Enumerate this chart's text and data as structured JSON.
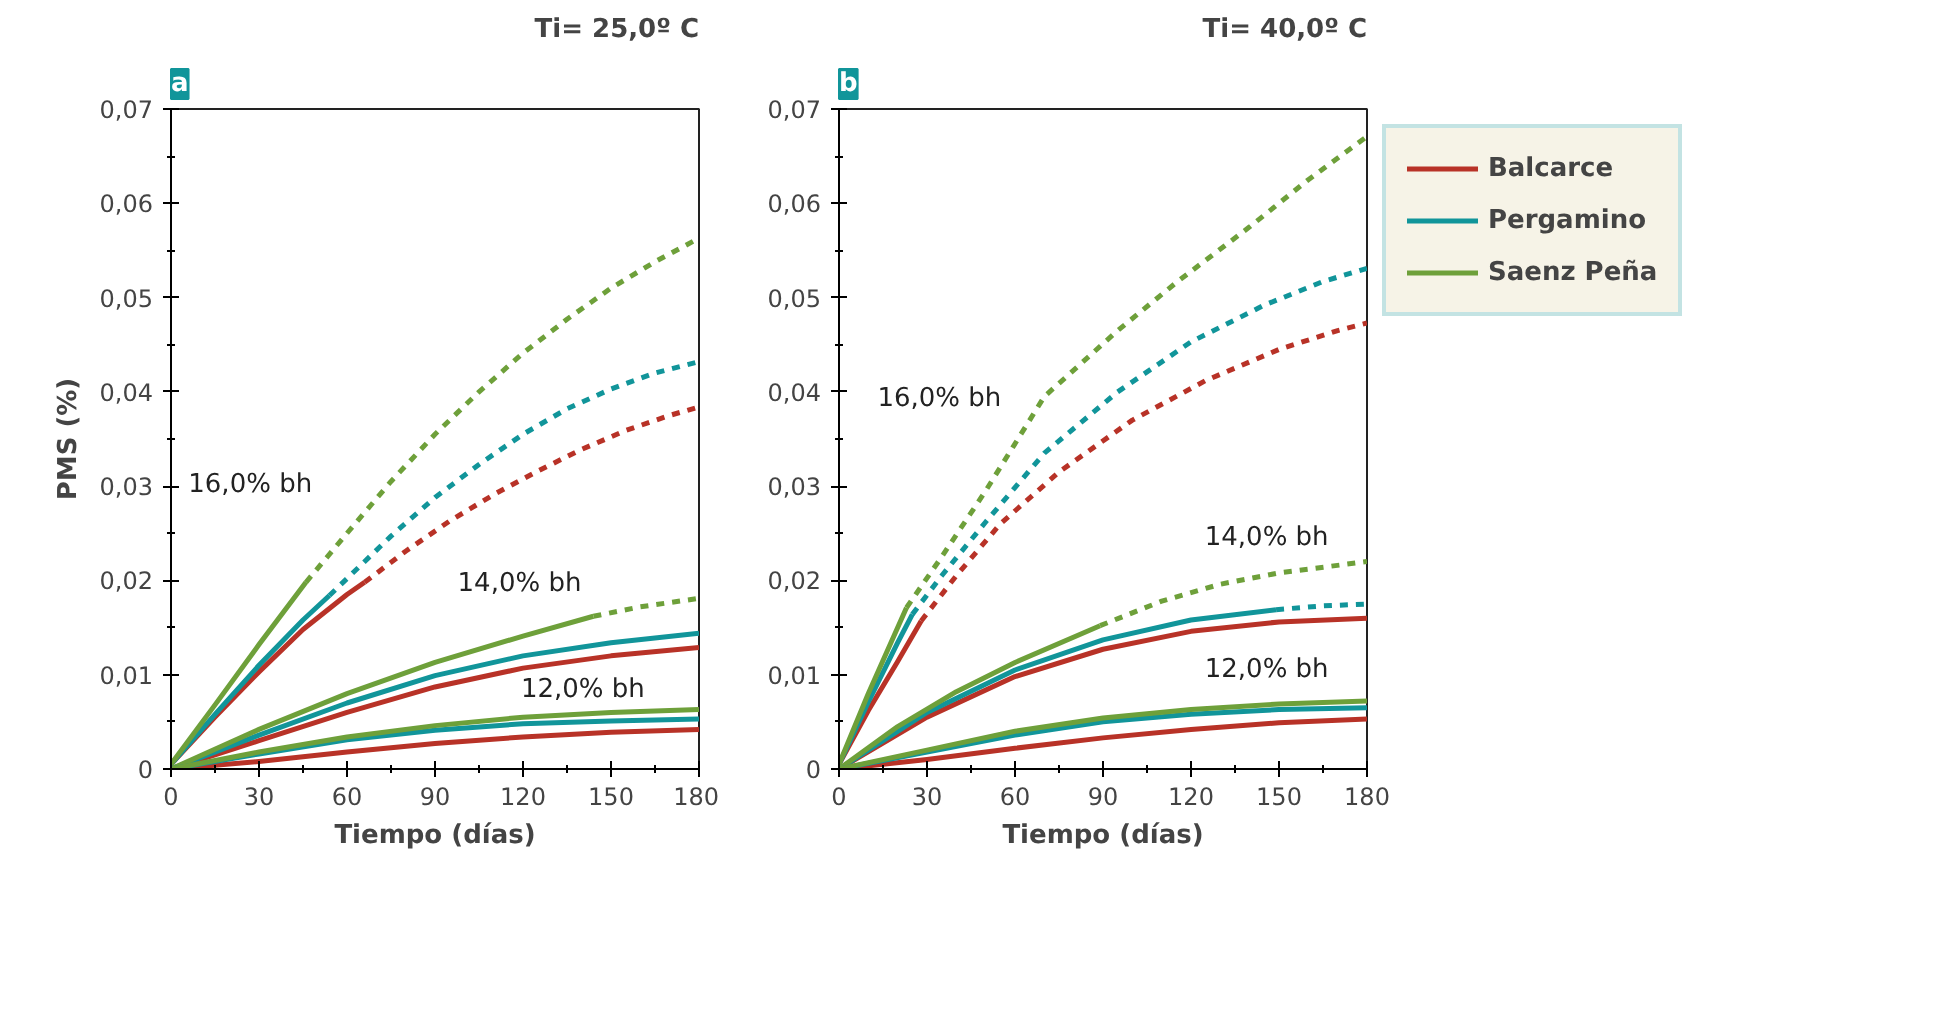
{
  "chart_data": [
    {
      "type": "line",
      "title": "Ti= 25,0º C",
      "subtitle": "a",
      "xlabel": "Tiempo (días)",
      "ylabel": "PMS (%)",
      "xlim": [
        0,
        180
      ],
      "ylim": [
        0,
        0.07
      ],
      "xticks": [
        0,
        30,
        60,
        90,
        120,
        150,
        180
      ],
      "yticks": [
        0,
        {
          "value": 0.01,
          "label": "0,01"
        },
        {
          "value": 0.02,
          "label": "0,02"
        },
        {
          "value": 0.03,
          "label": "0,03"
        },
        {
          "value": 0.04,
          "label": "0,04"
        },
        {
          "value": 0.05,
          "label": "0,05"
        },
        {
          "value": 0.06,
          "label": "0,06"
        },
        {
          "value": 0.07,
          "label": "0,07"
        }
      ],
      "grid": false,
      "legend": false,
      "annotations": [
        "16,0% bh",
        "14,0% bh",
        "12,0% bh"
      ],
      "series": [
        {
          "color": "#b83227",
          "line_style": "solid",
          "x": [
            0,
            15,
            30,
            45,
            60,
            66
          ],
          "values": [
            0.0005,
            0.0055,
            0.0103,
            0.0148,
            0.0185,
            0.0198
          ]
        },
        {
          "color": "#b83227",
          "line_style": "dashed",
          "x": [
            66,
            80,
            95,
            110,
            125,
            140,
            155,
            170,
            180
          ],
          "values": [
            0.0198,
            0.0231,
            0.0263,
            0.0291,
            0.0316,
            0.0339,
            0.0359,
            0.0375,
            0.0384
          ]
        },
        {
          "color": "#11959a",
          "line_style": "solid",
          "x": [
            0,
            15,
            30,
            45,
            54
          ],
          "values": [
            0.0005,
            0.0058,
            0.011,
            0.0158,
            0.0184
          ]
        },
        {
          "color": "#11959a",
          "line_style": "dashed",
          "x": [
            54,
            75,
            90,
            105,
            120,
            135,
            150,
            165,
            180
          ],
          "values": [
            0.0184,
            0.0247,
            0.0288,
            0.0323,
            0.0355,
            0.0382,
            0.0403,
            0.042,
            0.0432
          ]
        },
        {
          "color": "#6ea03a",
          "line_style": "solid",
          "x": [
            0,
            15,
            30,
            46
          ],
          "values": [
            0.0005,
            0.0068,
            0.0132,
            0.0198
          ]
        },
        {
          "color": "#6ea03a",
          "line_style": "dashed",
          "x": [
            46,
            60,
            75,
            90,
            105,
            120,
            135,
            150,
            165,
            180
          ],
          "values": [
            0.0198,
            0.025,
            0.0305,
            0.0355,
            0.04,
            0.0441,
            0.0477,
            0.051,
            0.0538,
            0.0563
          ]
        },
        {
          "color": "#b83227",
          "line_style": "solid",
          "x": [
            0,
            30,
            60,
            90,
            120,
            150,
            180
          ],
          "values": [
            0,
            0.003,
            0.006,
            0.0087,
            0.0107,
            0.012,
            0.0129
          ]
        },
        {
          "color": "#11959a",
          "line_style": "solid",
          "x": [
            0,
            30,
            60,
            90,
            120,
            150,
            180
          ],
          "values": [
            0,
            0.0036,
            0.007,
            0.0099,
            0.012,
            0.0134,
            0.0144
          ]
        },
        {
          "color": "#6ea03a",
          "line_style": "solid",
          "x": [
            0,
            30,
            60,
            90,
            120,
            144
          ],
          "values": [
            0,
            0.0042,
            0.008,
            0.0113,
            0.0141,
            0.0162
          ]
        },
        {
          "color": "#6ea03a",
          "line_style": "dashed",
          "x": [
            144,
            160,
            180
          ],
          "values": [
            0.0162,
            0.0172,
            0.0181
          ]
        },
        {
          "color": "#b83227",
          "line_style": "solid",
          "x": [
            0,
            30,
            60,
            90,
            120,
            150,
            180
          ],
          "values": [
            0,
            0.0008,
            0.0018,
            0.0027,
            0.0034,
            0.0039,
            0.0042
          ]
        },
        {
          "color": "#11959a",
          "line_style": "solid",
          "x": [
            0,
            30,
            60,
            90,
            120,
            150,
            180
          ],
          "values": [
            0,
            0.0016,
            0.0031,
            0.0041,
            0.0048,
            0.0051,
            0.0053
          ]
        },
        {
          "color": "#6ea03a",
          "line_style": "solid",
          "x": [
            0,
            30,
            60,
            90,
            120,
            150,
            180
          ],
          "values": [
            0,
            0.0018,
            0.0034,
            0.0046,
            0.0055,
            0.006,
            0.0063
          ]
        }
      ]
    },
    {
      "type": "line",
      "title": "Ti= 40,0º C",
      "subtitle": "b",
      "xlabel": "Tiempo (días)",
      "xlim": [
        0,
        180
      ],
      "ylim": [
        0,
        0.07
      ],
      "xticks": [
        0,
        30,
        60,
        90,
        120,
        150,
        180
      ],
      "yticks": [
        0,
        {
          "value": 0.01,
          "label": "0,01"
        },
        {
          "value": 0.02,
          "label": "0,02"
        },
        {
          "value": 0.03,
          "label": "0,03"
        },
        {
          "value": 0.04,
          "label": "0,04"
        },
        {
          "value": 0.05,
          "label": "0,05"
        },
        {
          "value": 0.06,
          "label": "0,06"
        },
        {
          "value": 0.07,
          "label": "0,07"
        }
      ],
      "grid": false,
      "legend": "right",
      "annotations": [
        "16,0% bh",
        "14,0% bh",
        "12,0% bh"
      ],
      "series": [
        {
          "name": "Balcarce",
          "color": "#b83227",
          "line_style": "solid",
          "x": [
            0,
            10,
            20,
            28
          ],
          "values": [
            0.0005,
            0.0062,
            0.0114,
            0.0157
          ]
        },
        {
          "color": "#b83227",
          "line_style": "dashed",
          "x": [
            28,
            40,
            55,
            75,
            100,
            125,
            150,
            170,
            180
          ],
          "values": [
            0.0157,
            0.0205,
            0.026,
            0.0315,
            0.037,
            0.0412,
            0.0445,
            0.0465,
            0.0473
          ]
        },
        {
          "name": "Pergamino",
          "color": "#11959a",
          "line_style": "solid",
          "x": [
            0,
            10,
            20,
            25
          ],
          "values": [
            0.0005,
            0.0071,
            0.0134,
            0.0164
          ]
        },
        {
          "color": "#11959a",
          "line_style": "dashed",
          "x": [
            25,
            35,
            50,
            70,
            95,
            120,
            145,
            165,
            180
          ],
          "values": [
            0.0164,
            0.0205,
            0.0262,
            0.0335,
            0.04,
            0.0453,
            0.0492,
            0.0517,
            0.0531
          ]
        },
        {
          "name": "Saenz Peña",
          "color": "#6ea03a",
          "line_style": "solid",
          "x": [
            0,
            10,
            23
          ],
          "values": [
            0.0005,
            0.008,
            0.0171
          ]
        },
        {
          "color": "#6ea03a",
          "line_style": "dashed",
          "x": [
            23,
            35,
            50,
            70,
            95,
            115,
            140,
            160,
            180
          ],
          "values": [
            0.0171,
            0.0225,
            0.0295,
            0.0395,
            0.0465,
            0.0516,
            0.0575,
            0.0625,
            0.0671
          ]
        },
        {
          "color": "#b83227",
          "line_style": "solid",
          "x": [
            0,
            30,
            60,
            90,
            120,
            150,
            180
          ],
          "values": [
            0,
            0.0055,
            0.0098,
            0.0127,
            0.0146,
            0.0156,
            0.016
          ]
        },
        {
          "color": "#11959a",
          "line_style": "solid",
          "x": [
            0,
            30,
            60,
            90,
            120,
            149
          ],
          "values": [
            0,
            0.006,
            0.0105,
            0.0137,
            0.0158,
            0.0169
          ]
        },
        {
          "color": "#11959a",
          "line_style": "dashed",
          "x": [
            149,
            165,
            180
          ],
          "values": [
            0.0169,
            0.0173,
            0.0175
          ]
        },
        {
          "color": "#6ea03a",
          "line_style": "solid",
          "x": [
            0,
            20,
            40,
            60,
            89
          ],
          "values": [
            0,
            0.0045,
            0.0082,
            0.0113,
            0.0152
          ]
        },
        {
          "color": "#6ea03a",
          "line_style": "dashed",
          "x": [
            89,
            110,
            130,
            150,
            180
          ],
          "values": [
            0.0152,
            0.0178,
            0.0196,
            0.0208,
            0.022
          ]
        },
        {
          "color": "#b83227",
          "line_style": "solid",
          "x": [
            0,
            30,
            60,
            90,
            120,
            150,
            180
          ],
          "values": [
            0,
            0.001,
            0.0022,
            0.0033,
            0.0042,
            0.0049,
            0.0053
          ]
        },
        {
          "color": "#11959a",
          "line_style": "solid",
          "x": [
            0,
            30,
            60,
            90,
            120,
            150,
            180
          ],
          "values": [
            0,
            0.0018,
            0.0036,
            0.005,
            0.0058,
            0.0063,
            0.0065
          ]
        },
        {
          "color": "#6ea03a",
          "line_style": "solid",
          "x": [
            0,
            30,
            60,
            90,
            120,
            150,
            180
          ],
          "values": [
            0,
            0.002,
            0.004,
            0.0054,
            0.0063,
            0.0069,
            0.0072
          ]
        }
      ]
    }
  ]
}
